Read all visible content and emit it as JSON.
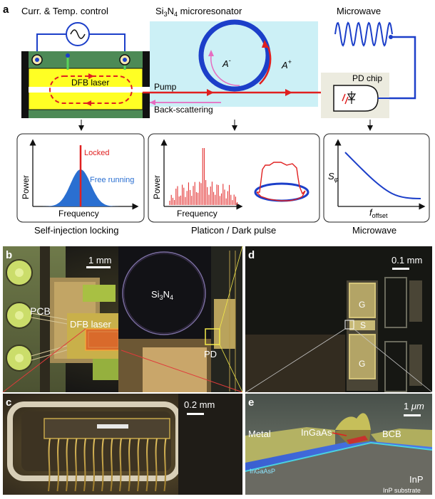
{
  "panel_a": {
    "letter": "a",
    "control_title": "Curr. & Temp. control",
    "resonator_title_pre": "Si",
    "resonator_sub1": "3",
    "resonator_mid": "N",
    "resonator_sub2": "4",
    "resonator_title_post": " microresonator",
    "mode_minus": "A",
    "mode_minus_sup": "-",
    "mode_plus": "A",
    "mode_plus_sup": "+",
    "microwave_title": "Microwave",
    "laser_label": "DFB laser",
    "pump_label": "Pump",
    "backscatter_label": "Back-scattering",
    "pd_chip_label": "PD chip",
    "plot1": {
      "ylabel": "Power",
      "xlabel": "Frequency",
      "locked": "Locked",
      "free": "Free running",
      "caption": "Self-injection locking",
      "locked_color": "#e02020",
      "free_color": "#2a6fd1"
    },
    "plot2": {
      "ylabel": "Power",
      "xlabel": "Frequency",
      "caption": "Platicon / Dark pulse"
    },
    "plot3": {
      "ylabel_main": "S",
      "ylabel_sub": "φ",
      "xlabel_main": "f",
      "xlabel_sub": "offset",
      "caption": "Microwave"
    }
  },
  "panel_b": {
    "letter": "b",
    "scale": "1 mm",
    "pcb": "PCB",
    "dfb": "DFB laser",
    "sin_pre": "Si",
    "sin_s1": "3",
    "sin_mid": "N",
    "sin_s2": "4",
    "pd": "PD"
  },
  "panel_c": {
    "letter": "c",
    "scale": "0.2 mm"
  },
  "panel_d": {
    "letter": "d",
    "scale": "0.1 mm",
    "g_top": "G",
    "s": "S",
    "g_bottom": "G"
  },
  "panel_e": {
    "letter": "e",
    "scale_pre": "1 ",
    "scale_unit": "μm",
    "metal": "Metal",
    "ingaas": "InGaAs",
    "bcb": "BCB",
    "ingaasp": "InGaAsP",
    "inp": "InP",
    "substrate": "InP substrate"
  }
}
